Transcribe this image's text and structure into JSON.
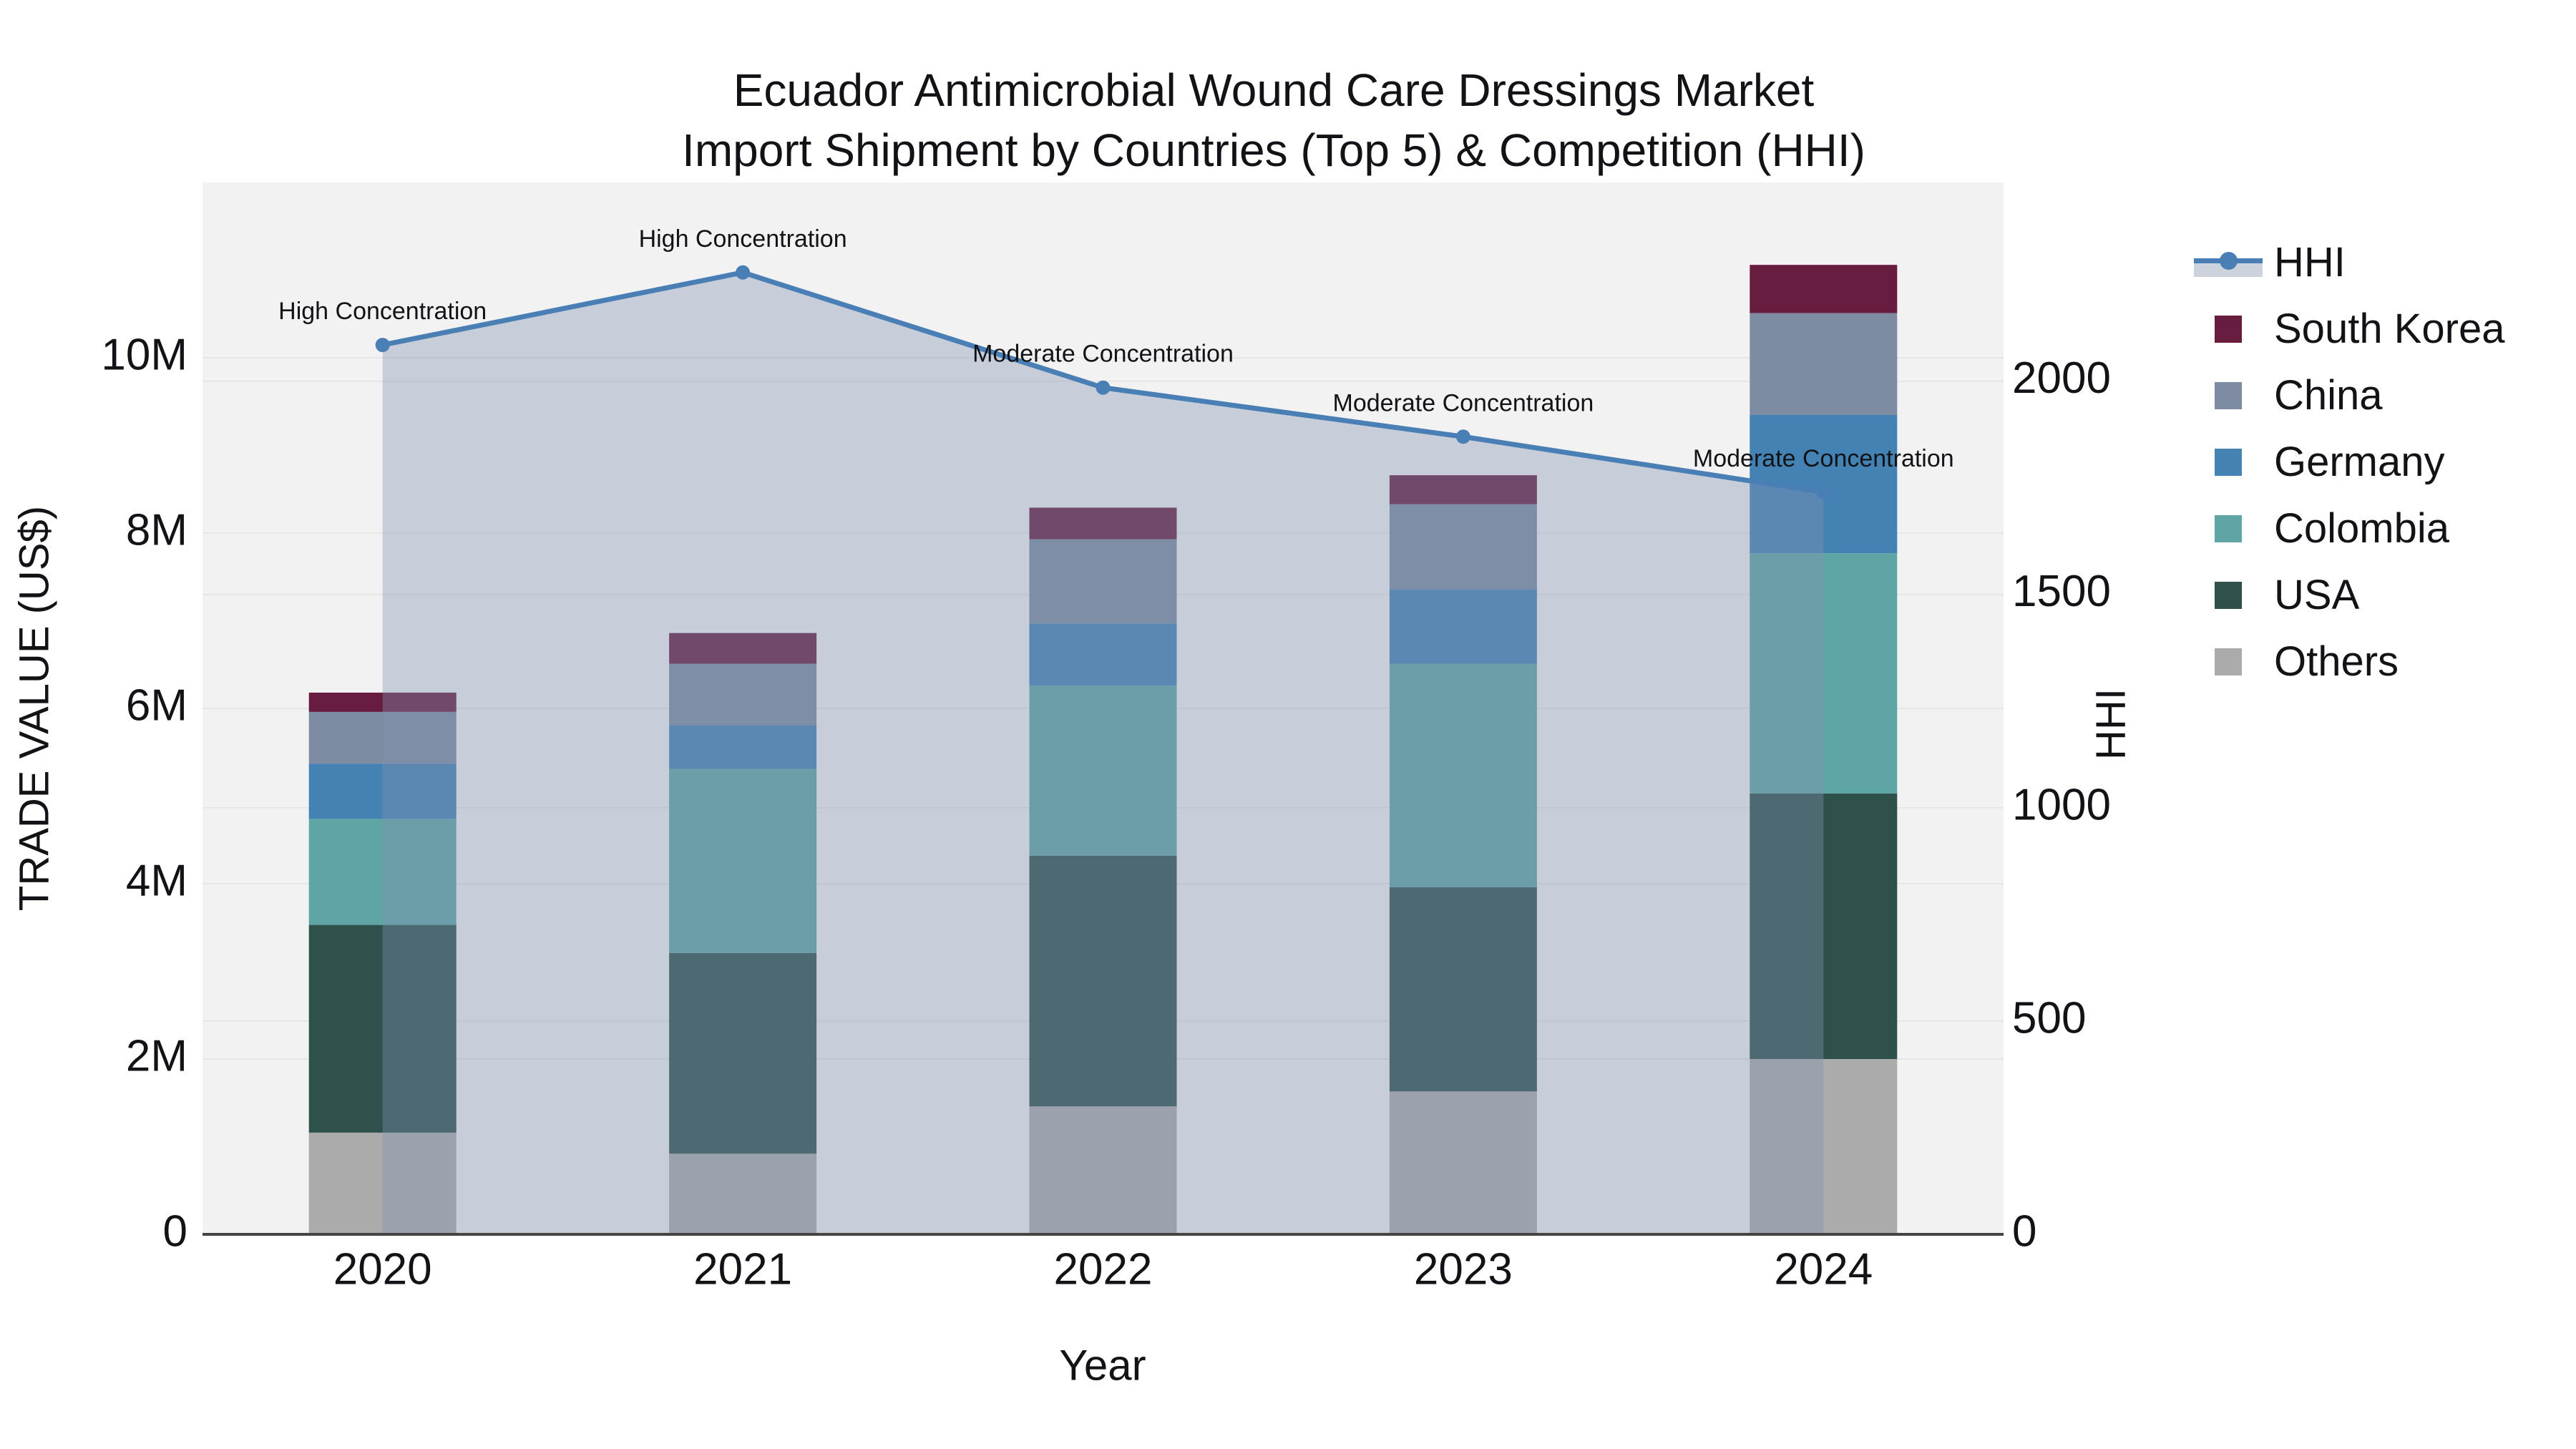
{
  "title": {
    "line1": "Ecuador Antimicrobial Wound Care Dressings Market",
    "line2": "Import Shipment by Countries (Top 5) & Competition (HHI)"
  },
  "axes": {
    "x": {
      "title": "Year",
      "tick_labels": [
        "2020",
        "2021",
        "2022",
        "2023",
        "2024"
      ]
    },
    "y_left": {
      "title": "TRADE VALUE (US$)",
      "tick_labels": [
        "0",
        "2M",
        "4M",
        "6M",
        "8M",
        "10M"
      ],
      "tick_values": [
        0,
        2000000,
        4000000,
        6000000,
        8000000,
        10000000
      ],
      "range": [
        0,
        12000000
      ]
    },
    "y_right": {
      "title": "HHI",
      "tick_labels": [
        "0",
        "500",
        "1000",
        "1500",
        "2000"
      ],
      "tick_values": [
        0,
        500,
        1000,
        1500,
        2000
      ],
      "range": [
        0,
        2466
      ]
    }
  },
  "legend": [
    "HHI",
    "South Korea",
    "China",
    "Germany",
    "Colombia",
    "USA",
    "Others"
  ],
  "chart_data": {
    "type": "combo-stacked-bar-line",
    "categories": [
      "2020",
      "2021",
      "2022",
      "2023",
      "2024"
    ],
    "bar_stack_order_bottom_to_top": [
      "Others",
      "USA",
      "Colombia",
      "Germany",
      "China",
      "South Korea"
    ],
    "series": [
      {
        "name": "Others",
        "type": "bar",
        "values": [
          1160000,
          920000,
          1460000,
          1630000,
          2000000
        ]
      },
      {
        "name": "USA",
        "type": "bar",
        "values": [
          2370000,
          2290000,
          2860000,
          2330000,
          3030000
        ]
      },
      {
        "name": "Colombia",
        "type": "bar",
        "values": [
          1210000,
          2100000,
          1940000,
          2550000,
          2740000
        ]
      },
      {
        "name": "Germany",
        "type": "bar",
        "values": [
          630000,
          500000,
          710000,
          850000,
          1580000
        ]
      },
      {
        "name": "China",
        "type": "bar",
        "values": [
          590000,
          700000,
          960000,
          970000,
          1160000
        ]
      },
      {
        "name": "South Korea",
        "type": "bar",
        "values": [
          220000,
          350000,
          360000,
          330000,
          550000
        ]
      }
    ],
    "line_series": {
      "name": "HHI",
      "axis": "y_right",
      "values": [
        2085,
        2255,
        1985,
        1870,
        1740
      ],
      "area_fill": true
    },
    "annotations": [
      {
        "category": "2020",
        "text": "High Concentration"
      },
      {
        "category": "2021",
        "text": "High Concentration"
      },
      {
        "category": "2022",
        "text": "Moderate Concentration"
      },
      {
        "category": "2023",
        "text": "Moderate Concentration"
      },
      {
        "category": "2024",
        "text": "Moderate Concentration"
      }
    ],
    "bar_totals": [
      6180000,
      6860000,
      8290000,
      8660000,
      11060000
    ],
    "title": "Ecuador Antimicrobial Wound Care Dressings Market Import Shipment by Countries (Top 5) & Competition (HHI)",
    "xlabel": "Year",
    "ylabel_left": "TRADE VALUE (US$)",
    "ylabel_right": "HHI",
    "grid": true,
    "legend_position": "right"
  },
  "colors": {
    "South Korea": "#681d3f",
    "China": "#7d8ca0",
    "Germany": "#4482b4",
    "Colombia": "#5fa5a5",
    "USA": "#2e524b",
    "Others": "#ababab",
    "hhi_line": "#4a7fb5",
    "hhi_area_fill": "rgba(130,148,180,0.38)",
    "legend_fill_sample": "#ccd3dc",
    "plot_background": "#f2f2f2",
    "gridline": "#e6e6e6",
    "axis_line": "#444444",
    "text": "#111317"
  }
}
